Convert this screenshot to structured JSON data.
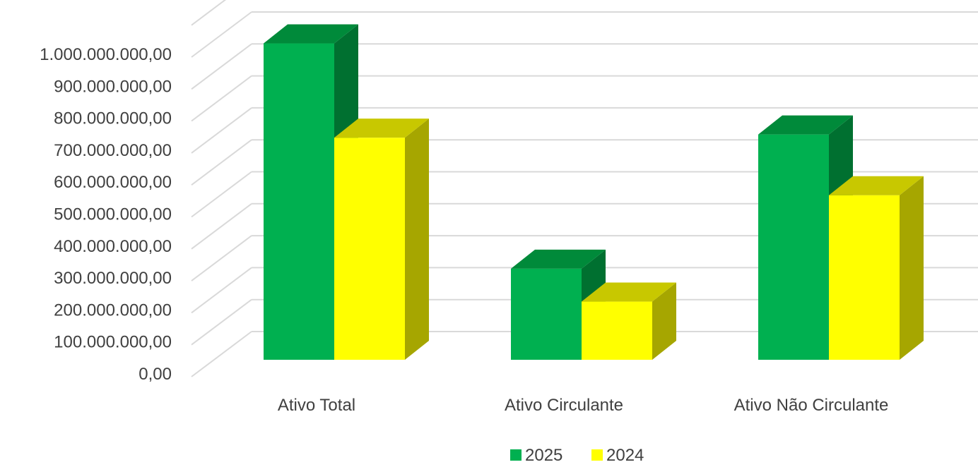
{
  "chart_data": {
    "type": "bar",
    "subtype": "3d-clustered-column",
    "title": "",
    "xlabel": "",
    "ylabel": "",
    "categories": [
      "Ativo Total",
      "Ativo Circulante",
      "Ativo Não Circulante"
    ],
    "series": [
      {
        "name": "2025",
        "color": "#00B050",
        "top_color": "#008A3A",
        "side_color": "#007030",
        "values": [
          990000000,
          285000000,
          705000000
        ]
      },
      {
        "name": "2024",
        "color": "#FFFF00",
        "top_color": "#C8C800",
        "side_color": "#A6A600",
        "values": [
          695000000,
          182000000,
          515000000
        ]
      }
    ],
    "ylim": [
      0,
      1000000000
    ],
    "ystep": 100000000,
    "yticks": [
      "0,00",
      "100.000.000,00",
      "200.000.000,00",
      "300.000.000,00",
      "400.000.000,00",
      "500.000.000,00",
      "600.000.000,00",
      "700.000.000,00",
      "800.000.000,00",
      "900.000.000,00",
      "1.000.000.000,00"
    ],
    "grid": true,
    "grid_color": "#D9D9D9",
    "legend_position": "bottom"
  }
}
